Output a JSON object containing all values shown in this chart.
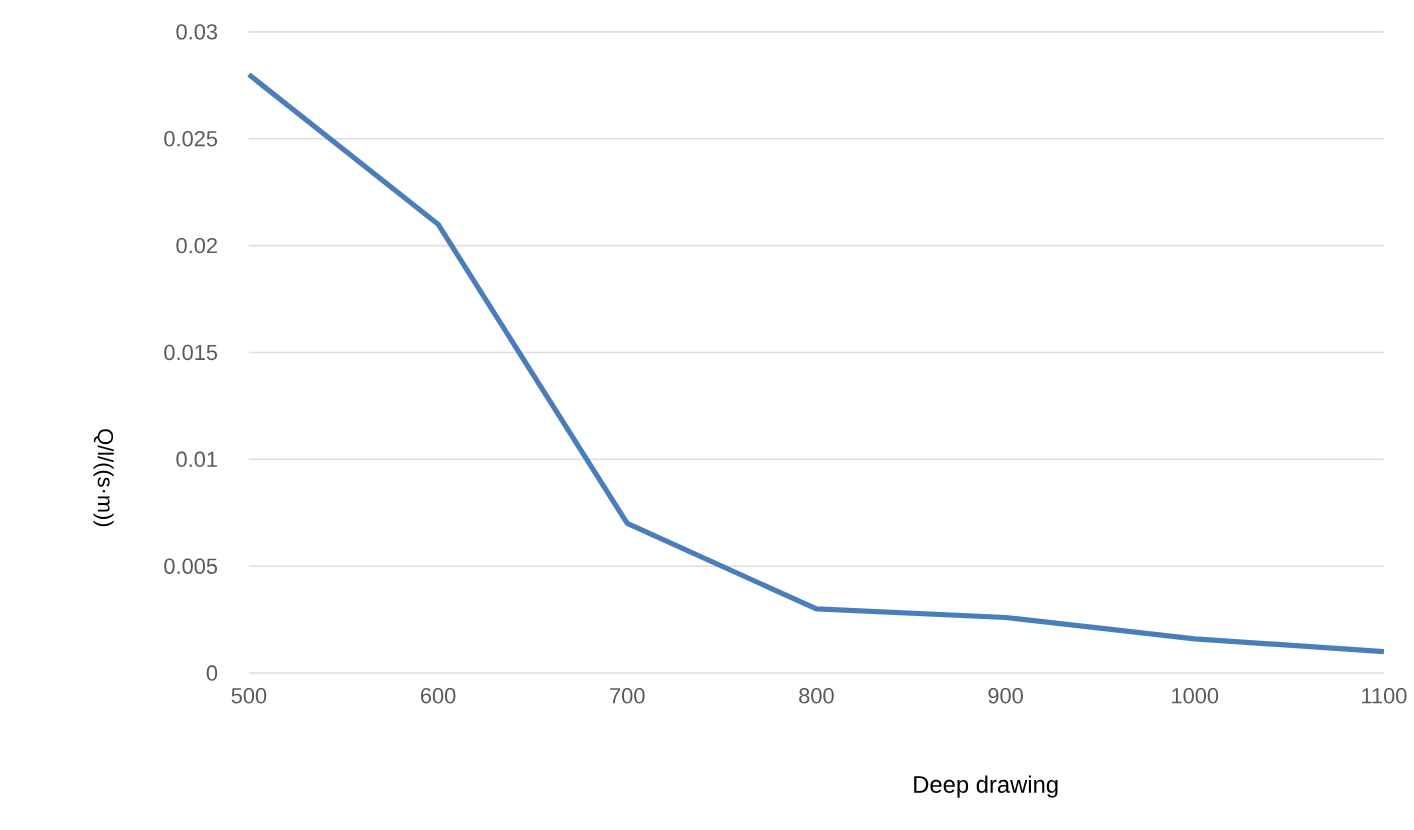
{
  "chart_data": {
    "type": "line",
    "xlabel": "Deep drawing",
    "ylabel": "Q/l/((s·m))",
    "x": [
      500,
      600,
      700,
      800,
      900,
      1000,
      1100
    ],
    "series": [
      {
        "color": "#4a7ebb",
        "values": [
          0.028,
          0.021,
          0.007,
          0.003,
          0.0026,
          0.0016,
          0.001
        ]
      }
    ],
    "xlim": [
      500,
      1100
    ],
    "xticks": [
      500,
      600,
      700,
      800,
      900,
      1000,
      1100
    ],
    "ylim": [
      0,
      0.03
    ],
    "yticks": [
      0,
      0.005,
      0.01,
      0.015,
      0.02,
      0.025,
      0.03
    ],
    "grid": "y",
    "legend": false,
    "marker": "none",
    "line_style": "solid"
  }
}
